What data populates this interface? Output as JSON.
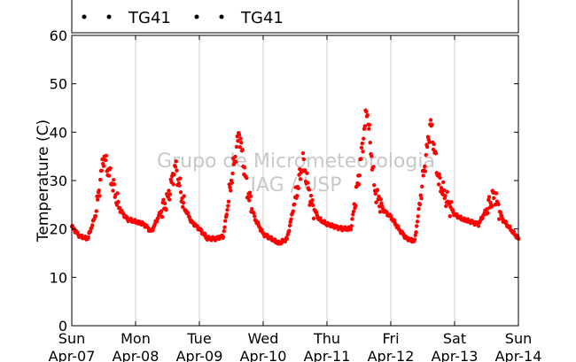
{
  "chart_data": {
    "type": "scatter",
    "title": "",
    "xlabel": "",
    "ylabel": "Temperature (C)",
    "ylim": [
      0,
      60
    ],
    "yticks": [
      0,
      10,
      20,
      30,
      40,
      50,
      60
    ],
    "xlim": [
      "2013-04-07",
      "2013-04-14"
    ],
    "xticks": [
      {
        "day": "Sun",
        "date": "Apr-07"
      },
      {
        "day": "Mon",
        "date": "Apr-08"
      },
      {
        "day": "Tue",
        "date": "Apr-09"
      },
      {
        "day": "Wed",
        "date": "Apr-10"
      },
      {
        "day": "Thu",
        "date": "Apr-11"
      },
      {
        "day": "Fri",
        "date": "Apr-12"
      },
      {
        "day": "Sat",
        "date": "Apr-13"
      },
      {
        "day": "Sun",
        "date": "Apr-14"
      }
    ],
    "grid": "vertical",
    "legend": {
      "placement": "top",
      "entries": [
        "TG41",
        "TG41"
      ]
    },
    "watermark": [
      "Grupo de Micrometeorologia",
      "IAG / USP"
    ],
    "series": [
      {
        "name": "TG41",
        "color": "#ff0000",
        "x": [
          "Apr-07 00:00",
          "Apr-07 03:00",
          "Apr-07 06:00",
          "Apr-07 09:00",
          "Apr-07 12:00",
          "Apr-07 15:00",
          "Apr-07 18:00",
          "Apr-07 21:00",
          "Apr-08 00:00",
          "Apr-08 03:00",
          "Apr-08 06:00",
          "Apr-08 09:00",
          "Apr-08 12:00",
          "Apr-08 15:00",
          "Apr-08 18:00",
          "Apr-08 21:00",
          "Apr-09 00:00",
          "Apr-09 03:00",
          "Apr-09 06:00",
          "Apr-09 09:00",
          "Apr-09 12:00",
          "Apr-09 15:00",
          "Apr-09 18:00",
          "Apr-09 21:00",
          "Apr-10 00:00",
          "Apr-10 03:00",
          "Apr-10 06:00",
          "Apr-10 09:00",
          "Apr-10 12:00",
          "Apr-10 15:00",
          "Apr-10 18:00",
          "Apr-10 21:00",
          "Apr-11 00:00",
          "Apr-11 03:00",
          "Apr-11 06:00",
          "Apr-11 09:00",
          "Apr-11 12:00",
          "Apr-11 15:00",
          "Apr-11 18:00",
          "Apr-11 21:00",
          "Apr-12 00:00",
          "Apr-12 03:00",
          "Apr-12 06:00",
          "Apr-12 09:00",
          "Apr-12 12:00",
          "Apr-12 15:00",
          "Apr-12 18:00",
          "Apr-12 21:00",
          "Apr-13 00:00",
          "Apr-13 03:00",
          "Apr-13 06:00",
          "Apr-13 09:00",
          "Apr-13 12:00",
          "Apr-13 15:00",
          "Apr-13 18:00",
          "Apr-13 21:00",
          "Apr-14 00:00"
        ],
        "values": [
          20.5,
          18.5,
          18.0,
          23.0,
          35.0,
          30.0,
          24.0,
          22.0,
          21.5,
          21.0,
          19.5,
          23.0,
          26.0,
          33.0,
          25.0,
          21.5,
          20.0,
          18.0,
          18.0,
          18.5,
          30.0,
          40.0,
          28.0,
          22.0,
          19.0,
          18.0,
          17.0,
          18.0,
          26.0,
          34.0,
          25.5,
          22.0,
          21.0,
          20.5,
          20.0,
          20.0,
          31.0,
          45.0,
          28.0,
          24.0,
          22.5,
          20.0,
          18.0,
          17.5,
          30.0,
          42.0,
          30.0,
          26.0,
          23.0,
          22.0,
          21.5,
          21.0,
          24.0,
          27.0,
          22.0,
          20.0,
          18.0
        ]
      }
    ]
  }
}
